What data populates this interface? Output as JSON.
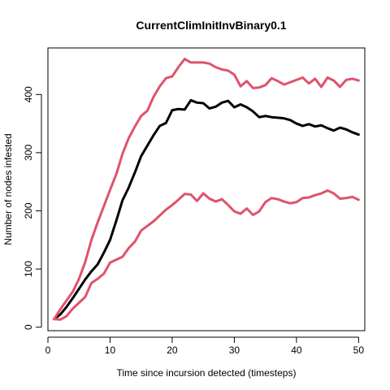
{
  "chart_data": {
    "type": "line",
    "title": "CurrentClimInitInvBinary0.1",
    "xlabel": "Time since incursion detected (timesteps)",
    "ylabel": "Number of nodes infested",
    "xlim": [
      0,
      51
    ],
    "ylim": [
      -6,
      480
    ],
    "x_ticks": [
      0,
      10,
      20,
      30,
      40,
      50
    ],
    "y_ticks": [
      0,
      100,
      200,
      300,
      400
    ],
    "grid": false,
    "legend": "none",
    "x": [
      1,
      2,
      3,
      4,
      5,
      6,
      7,
      8,
      9,
      10,
      11,
      12,
      13,
      14,
      15,
      16,
      17,
      18,
      19,
      20,
      21,
      22,
      23,
      24,
      25,
      26,
      27,
      28,
      29,
      30,
      31,
      32,
      33,
      34,
      35,
      36,
      37,
      38,
      39,
      40,
      41,
      42,
      43,
      44,
      45,
      46,
      47,
      48,
      49,
      50
    ],
    "series": [
      {
        "color": "#000000",
        "values": [
          14,
          22,
          35,
          50,
          66,
          82,
          96,
          108,
          128,
          150,
          183,
          218,
          240,
          266,
          294,
          312,
          330,
          346,
          351,
          373,
          375,
          374,
          390,
          386,
          385,
          376,
          379,
          386,
          389,
          378,
          383,
          378,
          371,
          361,
          363,
          361,
          360,
          359,
          356,
          350,
          346,
          349,
          345,
          347,
          342,
          338,
          343,
          340,
          335,
          331
        ]
      },
      {
        "color": "#DF536B",
        "values": [
          14,
          31,
          46,
          61,
          83,
          112,
          150,
          180,
          208,
          236,
          263,
          298,
          325,
          345,
          363,
          372,
          396,
          414,
          428,
          431,
          447,
          461,
          455,
          455,
          455,
          453,
          447,
          443,
          441,
          434,
          414,
          423,
          411,
          412,
          416,
          428,
          423,
          417,
          421,
          425,
          429,
          419,
          427,
          413,
          429,
          424,
          413,
          425,
          427,
          424
        ]
      },
      {
        "color": "#DF536B",
        "values": [
          14,
          13,
          19,
          32,
          42,
          52,
          76,
          83,
          92,
          111,
          116,
          121,
          136,
          147,
          166,
          174,
          182,
          192,
          202,
          210,
          219,
          229,
          228,
          217,
          230,
          221,
          216,
          220,
          210,
          199,
          195,
          204,
          193,
          199,
          215,
          222,
          220,
          216,
          213,
          215,
          222,
          223,
          227,
          230,
          235,
          230,
          221,
          222,
          224,
          219
        ]
      }
    ]
  }
}
